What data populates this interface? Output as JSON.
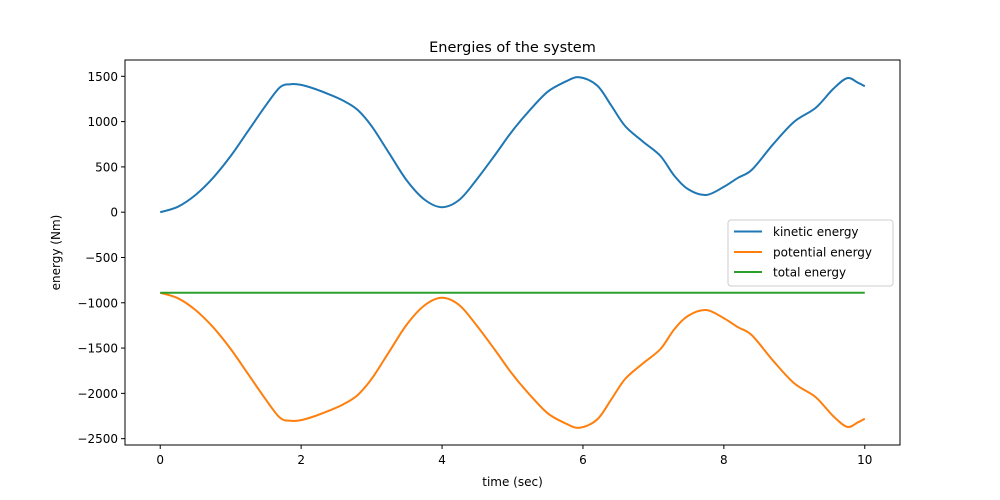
{
  "chart_data": {
    "type": "line",
    "title": "Energies of the system",
    "xlabel": "time (sec)",
    "ylabel": "energy (Nm)",
    "xlim": [
      -0.5,
      10.5
    ],
    "ylim": [
      -2570,
      1680
    ],
    "xticks": [
      0,
      2,
      4,
      6,
      8,
      10
    ],
    "xtick_labels": [
      "0",
      "2",
      "4",
      "6",
      "8",
      "10"
    ],
    "yticks": [
      1500,
      1000,
      500,
      0,
      -500,
      -1000,
      -1500,
      -2000,
      -2500
    ],
    "ytick_labels": [
      "1500",
      "1000",
      "500",
      "0",
      "−500",
      "−1000",
      "−1500",
      "−2000",
      "−2500"
    ],
    "grid": false,
    "legend_position": "center right",
    "x": [
      0,
      0.25,
      0.5,
      0.75,
      1.0,
      1.25,
      1.5,
      1.7,
      1.85,
      2.0,
      2.2,
      2.4,
      2.6,
      2.8,
      3.0,
      3.25,
      3.5,
      3.75,
      4.0,
      4.25,
      4.5,
      4.75,
      5.0,
      5.25,
      5.5,
      5.75,
      5.95,
      6.2,
      6.4,
      6.6,
      6.85,
      7.1,
      7.3,
      7.5,
      7.75,
      8.0,
      8.2,
      8.4,
      8.7,
      9.0,
      9.3,
      9.55,
      9.75,
      9.9,
      10.0
    ],
    "series": [
      {
        "name": "kinetic energy",
        "color": "#1f77b4",
        "values": [
          0,
          60,
          190,
          380,
          620,
          900,
          1180,
          1380,
          1413,
          1405,
          1360,
          1300,
          1230,
          1130,
          950,
          650,
          350,
          140,
          55,
          140,
          370,
          630,
          900,
          1130,
          1330,
          1440,
          1490,
          1400,
          1180,
          950,
          780,
          620,
          400,
          250,
          190,
          280,
          380,
          470,
          750,
          1000,
          1150,
          1360,
          1480,
          1430,
          1390
        ]
      },
      {
        "name": "potential energy",
        "color": "#ff7f0e",
        "values": [
          -890,
          -950,
          -1080,
          -1270,
          -1510,
          -1790,
          -2070,
          -2270,
          -2303,
          -2295,
          -2250,
          -2190,
          -2120,
          -2020,
          -1840,
          -1540,
          -1240,
          -1030,
          -945,
          -1030,
          -1260,
          -1520,
          -1790,
          -2020,
          -2220,
          -2330,
          -2380,
          -2290,
          -2070,
          -1840,
          -1670,
          -1510,
          -1290,
          -1140,
          -1080,
          -1170,
          -1270,
          -1360,
          -1640,
          -1890,
          -2040,
          -2250,
          -2370,
          -2320,
          -2280
        ]
      },
      {
        "name": "total energy",
        "color": "#2ca02c",
        "values": [
          -890,
          -890,
          -890,
          -890,
          -890,
          -890,
          -890,
          -890,
          -890,
          -890,
          -890,
          -890,
          -890,
          -890,
          -890,
          -890,
          -890,
          -890,
          -890,
          -890,
          -890,
          -890,
          -890,
          -890,
          -890,
          -890,
          -890,
          -890,
          -890,
          -890,
          -890,
          -890,
          -890,
          -890,
          -890,
          -890,
          -890,
          -890,
          -890,
          -890,
          -890,
          -890,
          -890,
          -890,
          -890
        ]
      }
    ]
  },
  "legend": {
    "items": [
      {
        "label": "kinetic energy",
        "color": "#1f77b4"
      },
      {
        "label": "potential energy",
        "color": "#ff7f0e"
      },
      {
        "label": "total energy",
        "color": "#2ca02c"
      }
    ]
  }
}
